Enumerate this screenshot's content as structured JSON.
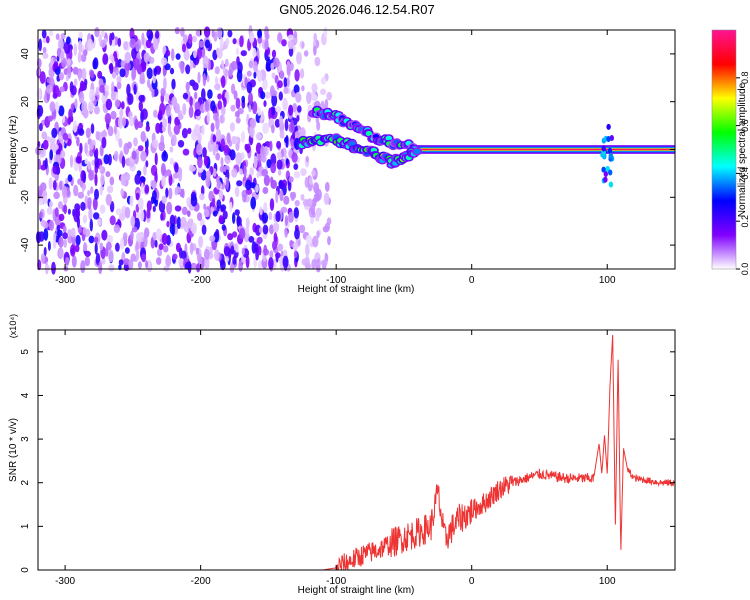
{
  "title": "GN05.2026.046.12.54.R07",
  "chart_data": [
    {
      "type": "heatmap",
      "title": "GN05.2026.046.12.54.R07",
      "xlabel": "Height of straight line (km)",
      "ylabel": "Frequency (Hz)",
      "xlim": [
        -320,
        150
      ],
      "ylim": [
        -50,
        50
      ],
      "x_ticks": [
        -300,
        -200,
        -100,
        0,
        100
      ],
      "y_ticks": [
        -40,
        -20,
        0,
        20,
        40
      ],
      "colorbar": {
        "label": "Normalized spectral amplitude",
        "range": [
          0.0,
          1.0
        ],
        "ticks": [
          0.0,
          0.2,
          0.4,
          0.6,
          0.8
        ],
        "colormap": [
          "#ffffff",
          "#8000ff",
          "#0000ff",
          "#00ffff",
          "#00ff00",
          "#ffff00",
          "#ff0000",
          "#ff1493"
        ]
      },
      "features": [
        {
          "description": "broadband noise",
          "x_range": [
            -320,
            -125
          ],
          "freq_range": [
            -50,
            50
          ],
          "amplitude": 0.15
        },
        {
          "description": "sparse noise",
          "x_range": [
            -125,
            -105
          ],
          "freq_range": [
            -50,
            50
          ],
          "amplitude": 0.05
        },
        {
          "description": "upper branch",
          "points": [
            [
              -118,
              16
            ],
            [
              -105,
              15
            ],
            [
              -95,
              12
            ],
            [
              -85,
              9
            ],
            [
              -75,
              6
            ],
            [
              -65,
              4
            ],
            [
              -55,
              2
            ],
            [
              -40,
              1
            ]
          ],
          "amplitude": 0.45
        },
        {
          "description": "lower branch",
          "points": [
            [
              -125,
              3
            ],
            [
              -115,
              4
            ],
            [
              -100,
              4
            ],
            [
              -90,
              2
            ],
            [
              -80,
              0
            ],
            [
              -70,
              -2
            ],
            [
              -60,
              -5
            ],
            [
              -50,
              -3
            ],
            [
              -40,
              -1
            ]
          ],
          "amplitude": 0.55
        },
        {
          "description": "carrier line",
          "x_range": [
            -40,
            150
          ],
          "freq": 0,
          "amplitude": 0.95
        },
        {
          "description": "spread feature",
          "x": 100,
          "freq_range": [
            -15,
            10
          ],
          "amplitude": 0.3
        }
      ]
    },
    {
      "type": "line",
      "xlabel": "Height of straight line (km)",
      "ylabel": "SNR (10 * v/v)",
      "y_scale_label": "(x10⁴)",
      "xlim": [
        -320,
        150
      ],
      "ylim": [
        0,
        5.5
      ],
      "x_ticks": [
        -300,
        -200,
        -100,
        0,
        100
      ],
      "y_ticks": [
        0,
        1,
        2,
        3,
        4,
        5
      ],
      "color": "#ee3333",
      "x": [
        -320,
        -110,
        -100,
        -90,
        -80,
        -70,
        -60,
        -50,
        -40,
        -30,
        -25,
        -20,
        -10,
        0,
        10,
        20,
        30,
        40,
        50,
        60,
        70,
        80,
        90,
        94,
        96,
        98,
        100,
        102,
        104,
        106,
        108,
        110,
        112,
        115,
        120,
        130,
        140,
        150
      ],
      "y": [
        0.0,
        0.0,
        0.05,
        0.2,
        0.35,
        0.45,
        0.6,
        0.75,
        0.85,
        1.0,
        1.8,
        0.7,
        1.15,
        1.35,
        1.55,
        1.85,
        2.0,
        2.1,
        2.2,
        2.15,
        2.1,
        2.1,
        2.1,
        2.9,
        2.2,
        3.1,
        2.2,
        4.2,
        5.4,
        1.0,
        4.9,
        0.4,
        2.8,
        2.3,
        2.1,
        2.05,
        2.0,
        2.0
      ],
      "noise_band": [
        {
          "x_range": [
            -100,
            -60
          ],
          "amplitude": 0.25
        },
        {
          "x_range": [
            -60,
            0
          ],
          "amplitude": 0.35
        },
        {
          "x_range": [
            0,
            30
          ],
          "amplitude": 0.25
        },
        {
          "x_range": [
            30,
            90
          ],
          "amplitude": 0.12
        },
        {
          "x_range": [
            115,
            150
          ],
          "amplitude": 0.08
        }
      ]
    }
  ]
}
